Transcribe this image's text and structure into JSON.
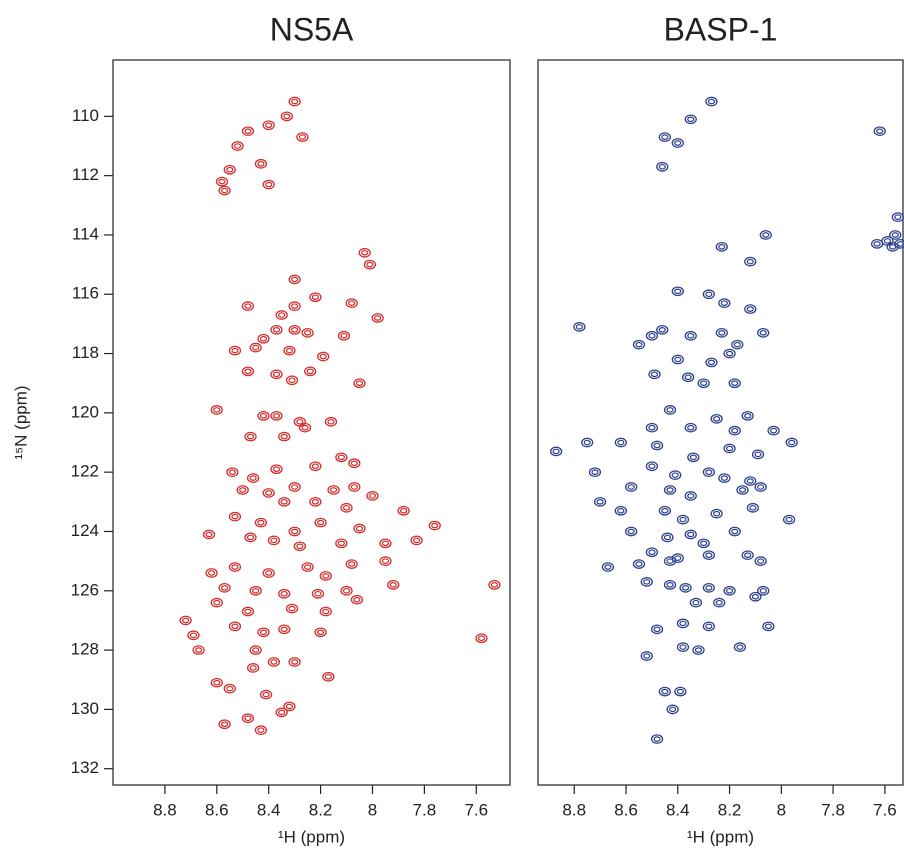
{
  "chart_data": [
    {
      "type": "scatter",
      "title": "NS5A",
      "xlabel": "¹H (ppm)",
      "ylabel": "¹⁵N (ppm)",
      "color": "#d42a2a",
      "xlim": [
        9.0,
        7.47
      ],
      "ylim": [
        108.1,
        132.55
      ],
      "xticks": [
        8.8,
        8.6,
        8.4,
        8.2,
        8.0,
        7.8,
        7.6
      ],
      "yticks": [
        110,
        112,
        114,
        116,
        118,
        120,
        122,
        124,
        126,
        128,
        130,
        132
      ],
      "x": [
        8.3,
        8.33,
        8.4,
        8.48,
        8.52,
        8.27,
        8.43,
        8.55,
        8.58,
        8.57,
        8.4,
        8.03,
        8.01,
        8.3,
        8.48,
        8.3,
        8.22,
        8.08,
        8.35,
        7.98,
        8.37,
        8.3,
        8.42,
        8.25,
        8.11,
        8.45,
        8.53,
        8.32,
        8.19,
        8.37,
        8.31,
        8.48,
        8.24,
        8.05,
        8.6,
        8.42,
        8.37,
        8.28,
        8.16,
        8.34,
        8.47,
        8.26,
        8.12,
        8.07,
        8.22,
        8.37,
        8.54,
        8.46,
        8.3,
        8.4,
        8.5,
        8.15,
        8.07,
        8.22,
        8.34,
        8.1,
        8.0,
        7.88,
        7.76,
        8.53,
        8.43,
        8.3,
        8.2,
        8.05,
        8.63,
        8.47,
        8.38,
        8.28,
        8.12,
        7.95,
        7.83,
        8.62,
        8.53,
        8.4,
        8.25,
        8.18,
        8.08,
        7.95,
        8.57,
        8.45,
        8.34,
        8.21,
        8.1,
        7.92,
        7.53,
        8.6,
        8.48,
        8.31,
        8.18,
        8.06,
        8.72,
        8.53,
        8.42,
        8.34,
        8.2,
        8.69,
        8.67,
        8.45,
        7.58,
        8.38,
        8.3,
        8.46,
        8.17,
        8.6,
        8.55,
        8.41,
        8.32,
        8.35,
        8.57,
        8.48,
        8.43
      ],
      "y": [
        109.5,
        110.0,
        110.3,
        110.5,
        111.0,
        110.7,
        111.6,
        111.8,
        112.2,
        112.5,
        112.3,
        114.6,
        115.0,
        115.5,
        116.4,
        116.4,
        116.1,
        116.3,
        116.7,
        116.8,
        117.2,
        117.2,
        117.5,
        117.3,
        117.4,
        117.8,
        117.9,
        117.9,
        118.1,
        118.7,
        118.9,
        118.6,
        118.6,
        119.0,
        119.9,
        120.1,
        120.1,
        120.3,
        120.3,
        120.8,
        120.8,
        120.5,
        121.5,
        121.7,
        121.8,
        121.9,
        122.0,
        122.2,
        122.5,
        122.7,
        122.6,
        122.6,
        122.5,
        123.0,
        123.0,
        123.2,
        122.8,
        123.3,
        123.8,
        123.5,
        123.7,
        124.0,
        123.7,
        123.9,
        124.1,
        124.2,
        124.3,
        124.5,
        124.4,
        124.4,
        124.3,
        125.4,
        125.2,
        125.4,
        125.2,
        125.5,
        125.1,
        125.0,
        125.9,
        126.0,
        126.1,
        126.1,
        126.0,
        125.8,
        125.8,
        126.4,
        126.7,
        126.6,
        126.7,
        126.3,
        127.0,
        127.2,
        127.4,
        127.3,
        127.4,
        127.5,
        128.0,
        128.0,
        127.6,
        128.4,
        128.4,
        128.6,
        128.9,
        129.1,
        129.3,
        129.5,
        129.9,
        130.1,
        130.5,
        130.3,
        130.7
      ]
    },
    {
      "type": "scatter",
      "title": "BASP-1",
      "xlabel": "¹H (ppm)",
      "color": "#2b3f8d",
      "xlim": [
        8.94,
        7.53
      ],
      "ylim": [
        108.1,
        132.55
      ],
      "xticks": [
        8.8,
        8.6,
        8.4,
        8.2,
        8.0,
        7.8,
        7.6
      ],
      "x": [
        8.27,
        8.35,
        8.45,
        8.4,
        7.62,
        8.46,
        8.23,
        8.06,
        8.12,
        7.63,
        7.57,
        7.54,
        7.56,
        7.55,
        7.59,
        8.4,
        8.28,
        8.22,
        8.12,
        8.46,
        8.5,
        8.55,
        8.35,
        8.23,
        8.17,
        8.07,
        8.78,
        8.2,
        8.27,
        8.4,
        8.49,
        8.36,
        8.3,
        8.18,
        8.43,
        8.25,
        8.13,
        8.5,
        8.35,
        8.18,
        8.03,
        8.87,
        8.75,
        8.62,
        8.48,
        8.34,
        8.2,
        8.09,
        7.96,
        8.5,
        8.41,
        8.28,
        8.22,
        8.12,
        8.72,
        8.58,
        8.43,
        8.35,
        8.15,
        8.08,
        8.7,
        8.62,
        8.45,
        8.38,
        8.25,
        8.11,
        7.97,
        8.58,
        8.44,
        8.35,
        8.3,
        8.18,
        8.5,
        8.4,
        8.28,
        8.13,
        8.67,
        8.55,
        8.43,
        8.08,
        8.52,
        8.43,
        8.37,
        8.28,
        8.2,
        8.07,
        8.33,
        8.24,
        8.1,
        8.48,
        8.38,
        8.28,
        8.05,
        8.38,
        8.32,
        8.16,
        8.52,
        8.45,
        8.39,
        8.42,
        8.48
      ],
      "y": [
        109.5,
        110.1,
        110.7,
        110.9,
        110.5,
        111.7,
        114.4,
        114.0,
        114.9,
        114.3,
        114.4,
        114.3,
        114.0,
        113.4,
        114.2,
        115.9,
        116.0,
        116.3,
        116.5,
        117.2,
        117.4,
        117.7,
        117.4,
        117.3,
        117.7,
        117.3,
        117.1,
        118.0,
        118.3,
        118.2,
        118.7,
        118.8,
        119.0,
        119.0,
        119.9,
        120.2,
        120.1,
        120.5,
        120.5,
        120.6,
        120.6,
        121.3,
        121.0,
        121.0,
        121.1,
        121.5,
        121.2,
        121.4,
        121.0,
        121.8,
        122.1,
        122.0,
        122.2,
        122.3,
        122.0,
        122.5,
        122.6,
        122.8,
        122.6,
        122.5,
        123.0,
        123.3,
        123.3,
        123.6,
        123.4,
        123.2,
        123.6,
        124.0,
        124.2,
        124.1,
        124.4,
        124.0,
        124.7,
        124.9,
        124.8,
        124.8,
        125.2,
        125.1,
        125.0,
        125.0,
        125.7,
        125.8,
        125.9,
        125.9,
        126.0,
        126.0,
        126.4,
        126.4,
        126.2,
        127.3,
        127.1,
        127.2,
        127.2,
        127.9,
        128.0,
        127.9,
        128.2,
        129.4,
        129.4,
        130.0,
        131.0
      ]
    }
  ]
}
